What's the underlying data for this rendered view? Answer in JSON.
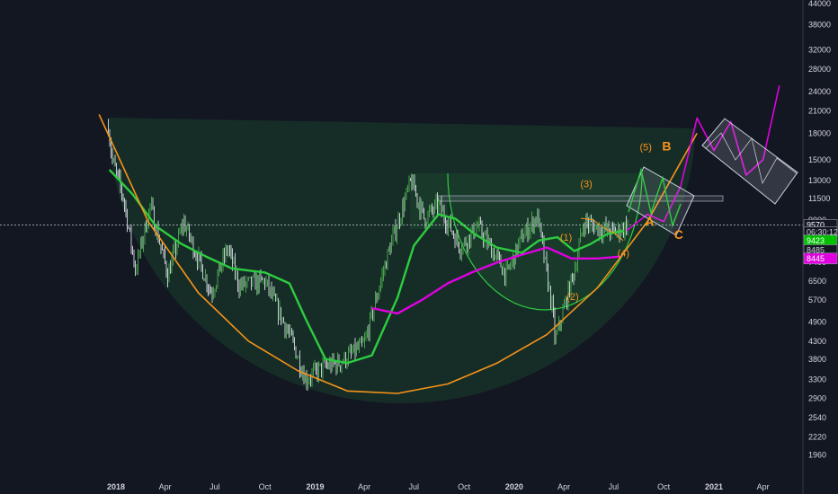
{
  "chart_data": {
    "type": "line",
    "log_scale": true,
    "ylim": [
      1800,
      44000
    ],
    "grid": false,
    "y_ticks": [
      44000,
      38000,
      32000,
      28000,
      24000,
      21000,
      18000,
      15000,
      13000,
      11500,
      9900,
      8600,
      7400,
      6500,
      5700,
      4900,
      4300,
      3800,
      3300,
      2900,
      2540,
      2220,
      1960
    ],
    "x_ticks": [
      "2018",
      "Apr",
      "Jul",
      "Oct",
      "2019",
      "Apr",
      "Jul",
      "Oct",
      "2020",
      "Apr",
      "Jul",
      "Oct",
      "2021",
      "Apr"
    ],
    "x_ticks_bold": [
      "2018",
      "2019",
      "2020",
      "2021"
    ],
    "price_line": 9570,
    "price_tags": [
      {
        "label": "9570",
        "value": 9570,
        "bg": "#131722",
        "fg": "#ffffff"
      },
      {
        "label": "06:30:12",
        "value": 9100,
        "bg": "#131722",
        "fg": "#d1d4dc"
      },
      {
        "label": "9423",
        "value": 8600,
        "bg": "#00c000",
        "fg": "#ffffff"
      },
      {
        "label": "8485",
        "value": 8050,
        "bg": "#131722",
        "fg": "#d1d4dc"
      },
      {
        "label": "8445",
        "value": 7600,
        "bg": "#e000e0",
        "fg": "#ffffff"
      }
    ],
    "series": [
      {
        "color": "#2ecc40",
        "x": [
          "2017-12-20",
          "2018-02-01",
          "2018-03-15",
          "2018-05-01",
          "2018-06-15",
          "2018-08-01",
          "2018-10-01",
          "2018-11-15",
          "2018-12-15",
          "2019-01-20",
          "2019-03-01",
          "2019-04-15",
          "2019-06-01",
          "2019-07-01",
          "2019-08-15",
          "2019-09-15",
          "2019-10-20",
          "2019-11-30",
          "2020-01-15",
          "2020-02-15",
          "2020-03-20",
          "2020-04-20",
          "2020-05-20",
          "2020-06-20",
          "2020-07-20"
        ],
        "values": [
          14000,
          11800,
          9500,
          8400,
          7700,
          7100,
          6900,
          6400,
          5000,
          3800,
          3700,
          3900,
          5800,
          8300,
          10300,
          10000,
          9000,
          8200,
          7900,
          8600,
          8800,
          8000,
          8400,
          9000,
          9200
        ]
      },
      {
        "color": "#e000e0",
        "x": [
          "2017-12-01",
          "2018-01-15",
          "2018-03-01",
          "2018-04-15",
          "2018-06-01",
          "2018-07-15",
          "2018-09-01",
          "2018-10-15",
          "2018-12-01",
          "2019-01-15",
          "2019-03-01",
          "2019-04-15",
          "2019-06-01",
          "2019-07-15",
          "2019-09-01",
          "2019-10-15",
          "2019-12-01",
          "2020-01-15",
          "2020-03-01",
          "2020-04-15",
          "2020-06-01",
          "2020-07-15"
        ],
        "values": [
          null,
          null,
          null,
          null,
          null,
          null,
          null,
          null,
          null,
          null,
          null,
          5400,
          5200,
          5700,
          6400,
          6900,
          7400,
          7800,
          8200,
          7600,
          7600,
          7700
        ]
      },
      {
        "color": "#f7931a",
        "name": "",
        "x": [
          "2017-12-01",
          "2018-03-01",
          "2018-06-01",
          "2018-09-01",
          "2018-12-01",
          "2019-03-01",
          "2019-06-01",
          "2019-09-01",
          "2019-12-01",
          "2020-03-01",
          "2020-06-01",
          "2020-09-01",
          "2020-12-01"
        ],
        "values": [
          20500,
          9800,
          6000,
          4300,
          3500,
          3050,
          3000,
          3200,
          3700,
          4500,
          6200,
          9800,
          18000
        ]
      },
      {
        "color": "#e000e0",
        "name": "",
        "x": [
          "2020-07-25",
          "2020-09-01",
          "2020-10-01",
          "2020-11-01",
          "2020-12-01",
          "2021-01-01",
          "2021-02-01",
          "2021-03-01",
          "2021-04-01",
          "2021-05-01"
        ],
        "values": [
          9200,
          10300,
          9800,
          12500,
          20000,
          16000,
          19500,
          13500,
          15000,
          25000
        ]
      }
    ],
    "annotations": [
      {
        "text": "(5)",
        "x": "2020-08-18",
        "y": 16000
      },
      {
        "text": "B",
        "x": "2020-09-28",
        "y": 16000
      },
      {
        "text": "(3)",
        "x": "2020-05-01",
        "y": 12400
      },
      {
        "text": "(1)",
        "x": "2020-03-25",
        "y": 8600
      },
      {
        "text": "(4)",
        "x": "2020-07-08",
        "y": 7700
      },
      {
        "text": "(2)",
        "x": "2020-04-06",
        "y": 5700
      },
      {
        "text": "A",
        "x": "2020-08-28",
        "y": 9500
      },
      {
        "text": "C",
        "x": "2020-10-20",
        "y": 8700
      }
    ]
  }
}
